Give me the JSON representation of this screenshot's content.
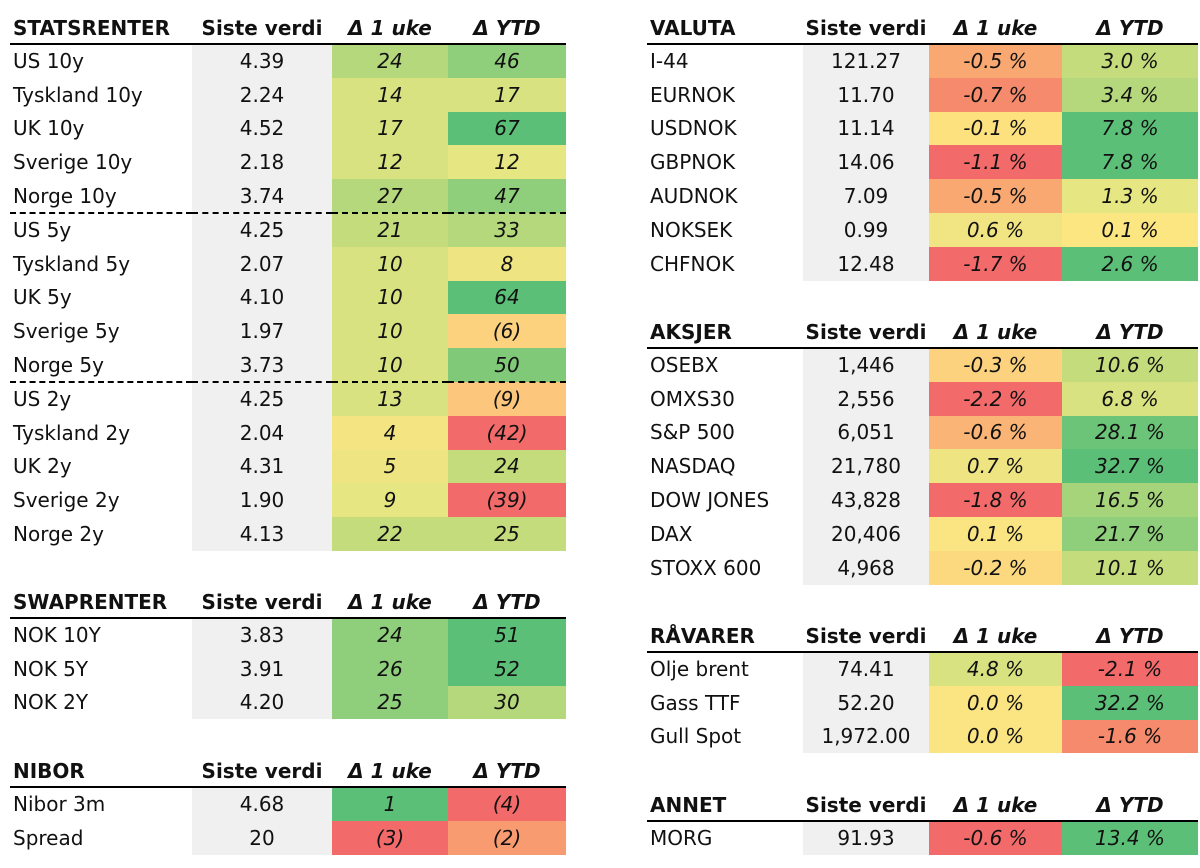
{
  "colors": {
    "green_strong": "#5cbf78",
    "green": "#8fce7a",
    "green_light": "#b4d87b",
    "yellow_green": "#d8e280",
    "yellow": "#fbe582",
    "orange_light": "#fcc77c",
    "orange": "#f99b70",
    "red": "#f36a6a",
    "value_bg": "#f0f0f0"
  },
  "tables": [
    {
      "id": "statsrenter",
      "headers": [
        "STATSRENTER",
        "Siste verdi",
        "Δ 1 uke",
        "Δ YTD"
      ],
      "rows": [
        {
          "name": "US 10y",
          "value": "4.39",
          "wk": "24",
          "ytd": "46",
          "wk_color": "#b4d87b",
          "ytd_color": "#8fce7a"
        },
        {
          "name": "Tyskland 10y",
          "value": "2.24",
          "wk": "14",
          "ytd": "17",
          "wk_color": "#d8e280",
          "ytd_color": "#d8e280"
        },
        {
          "name": "UK 10y",
          "value": "4.52",
          "wk": "17",
          "ytd": "67",
          "wk_color": "#d8e280",
          "ytd_color": "#5cbf78"
        },
        {
          "name": "Sverige 10y",
          "value": "2.18",
          "wk": "12",
          "ytd": "12",
          "wk_color": "#d8e280",
          "ytd_color": "#e6e682"
        },
        {
          "name": "Norge 10y",
          "value": "3.74",
          "wk": "27",
          "ytd": "47",
          "wk_color": "#b4d87b",
          "ytd_color": "#8fce7a",
          "sep_after": true
        },
        {
          "name": "US 5y",
          "value": "4.25",
          "wk": "21",
          "ytd": "33",
          "wk_color": "#c5dc7d",
          "ytd_color": "#b4d87b"
        },
        {
          "name": "Tyskland 5y",
          "value": "2.07",
          "wk": "10",
          "ytd": "8",
          "wk_color": "#d8e280",
          "ytd_color": "#eee582"
        },
        {
          "name": "UK 5y",
          "value": "4.10",
          "wk": "10",
          "ytd": "64",
          "wk_color": "#d8e280",
          "ytd_color": "#5cbf78"
        },
        {
          "name": "Sverige 5y",
          "value": "1.97",
          "wk": "10",
          "ytd": "(6)",
          "wk_color": "#d8e280",
          "ytd_color": "#fcd27e"
        },
        {
          "name": "Norge 5y",
          "value": "3.73",
          "wk": "10",
          "ytd": "50",
          "wk_color": "#d8e280",
          "ytd_color": "#7fc978",
          "sep_after": true
        },
        {
          "name": "US 2y",
          "value": "4.25",
          "wk": "13",
          "ytd": "(9)",
          "wk_color": "#d8e280",
          "ytd_color": "#fcc77c"
        },
        {
          "name": "Tyskland 2y",
          "value": "2.04",
          "wk": "4",
          "ytd": "(42)",
          "wk_color": "#f4e582",
          "ytd_color": "#f36a6a"
        },
        {
          "name": "UK 2y",
          "value": "4.31",
          "wk": "5",
          "ytd": "24",
          "wk_color": "#eee582",
          "ytd_color": "#c5dc7d"
        },
        {
          "name": "Sverige 2y",
          "value": "1.90",
          "wk": "9",
          "ytd": "(39)",
          "wk_color": "#e6e682",
          "ytd_color": "#f36a6a"
        },
        {
          "name": "Norge 2y",
          "value": "4.13",
          "wk": "22",
          "ytd": "25",
          "wk_color": "#c5dc7d",
          "ytd_color": "#c5dc7d"
        }
      ]
    },
    {
      "id": "swaprenter",
      "headers": [
        "SWAPRENTER",
        "Siste verdi",
        "Δ 1 uke",
        "Δ YTD"
      ],
      "rows": [
        {
          "name": "NOK 10Y",
          "value": "3.83",
          "wk": "24",
          "ytd": "51",
          "wk_color": "#8fce7a",
          "ytd_color": "#5cbf78"
        },
        {
          "name": "NOK 5Y",
          "value": "3.91",
          "wk": "26",
          "ytd": "52",
          "wk_color": "#8fce7a",
          "ytd_color": "#5cbf78"
        },
        {
          "name": "NOK 2Y",
          "value": "4.20",
          "wk": "25",
          "ytd": "30",
          "wk_color": "#8fce7a",
          "ytd_color": "#b4d87b"
        }
      ]
    },
    {
      "id": "nibor",
      "headers": [
        "NIBOR",
        "Siste verdi",
        "Δ 1 uke",
        "Δ YTD"
      ],
      "rows": [
        {
          "name": "Nibor 3m",
          "value": "4.68",
          "wk": "1",
          "ytd": "(4)",
          "wk_color": "#5cbf78",
          "ytd_color": "#f36a6a"
        },
        {
          "name": "Spread",
          "value": "20",
          "wk": "(3)",
          "ytd": "(2)",
          "wk_color": "#f36a6a",
          "ytd_color": "#f99b70"
        }
      ]
    },
    {
      "id": "valuta",
      "headers": [
        "VALUTA",
        "Siste verdi",
        "Δ 1 uke",
        "Δ YTD"
      ],
      "rows": [
        {
          "name": "I-44",
          "value": "121.27",
          "wk": "-0.5 %",
          "ytd": "3.0 %",
          "wk_color": "#f9a872",
          "ytd_color": "#c5dc7d"
        },
        {
          "name": "EURNOK",
          "value": "11.70",
          "wk": "-0.7 %",
          "ytd": "3.4 %",
          "wk_color": "#f58a6c",
          "ytd_color": "#b4d87b"
        },
        {
          "name": "USDNOK",
          "value": "11.14",
          "wk": "-0.1 %",
          "ytd": "7.8 %",
          "wk_color": "#fde17f",
          "ytd_color": "#5cbf78"
        },
        {
          "name": "GBPNOK",
          "value": "14.06",
          "wk": "-1.1 %",
          "ytd": "7.8 %",
          "wk_color": "#f36a6a",
          "ytd_color": "#5cbf78"
        },
        {
          "name": "AUDNOK",
          "value": "7.09",
          "wk": "-0.5 %",
          "ytd": "1.3 %",
          "wk_color": "#f9a872",
          "ytd_color": "#e6e682"
        },
        {
          "name": "NOKSEK",
          "value": "0.99",
          "wk": "0.6 %",
          "ytd": "0.1 %",
          "wk_color": "#f0e582",
          "ytd_color": "#fce682"
        },
        {
          "name": "CHFNOK",
          "value": "12.48",
          "wk": "-1.7 %",
          "ytd": "2.6 %",
          "wk_color": "#f36a6a",
          "ytd_color": "#5cbf78"
        }
      ]
    },
    {
      "id": "aksjer",
      "headers": [
        "AKSJER",
        "Siste verdi",
        "Δ 1 uke",
        "Δ YTD"
      ],
      "rows": [
        {
          "name": "OSEBX",
          "value": "1,446",
          "wk": "-0.3 %",
          "ytd": "10.6 %",
          "wk_color": "#fcd27e",
          "ytd_color": "#c5dc7d"
        },
        {
          "name": "OMXS30",
          "value": "2,556",
          "wk": "-2.2 %",
          "ytd": "6.8 %",
          "wk_color": "#f36a6a",
          "ytd_color": "#d8e280"
        },
        {
          "name": "S&P 500",
          "value": "6,051",
          "wk": "-0.6 %",
          "ytd": "28.1 %",
          "wk_color": "#f9b476",
          "ytd_color": "#6cc478"
        },
        {
          "name": "NASDAQ",
          "value": "21,780",
          "wk": "0.7 %",
          "ytd": "32.7 %",
          "wk_color": "#eee582",
          "ytd_color": "#5cbf78"
        },
        {
          "name": "DOW JONES",
          "value": "43,828",
          "wk": "-1.8 %",
          "ytd": "16.5 %",
          "wk_color": "#f36a6a",
          "ytd_color": "#a6d47a"
        },
        {
          "name": "DAX",
          "value": "20,406",
          "wk": "0.1 %",
          "ytd": "21.7 %",
          "wk_color": "#fbe582",
          "ytd_color": "#8fce7a"
        },
        {
          "name": "STOXX 600",
          "value": "4,968",
          "wk": "-0.2 %",
          "ytd": "10.1 %",
          "wk_color": "#fcd87f",
          "ytd_color": "#c5dc7d"
        }
      ]
    },
    {
      "id": "ravarer",
      "headers": [
        "RÅVARER",
        "Siste verdi",
        "Δ 1 uke",
        "Δ YTD"
      ],
      "rows": [
        {
          "name": "Olje brent",
          "value": "74.41",
          "wk": "4.8 %",
          "ytd": "-2.1 %",
          "wk_color": "#d8e280",
          "ytd_color": "#f36a6a"
        },
        {
          "name": "Gass TTF",
          "value": "52.20",
          "wk": "0.0 %",
          "ytd": "32.2 %",
          "wk_color": "#fbe582",
          "ytd_color": "#5cbf78"
        },
        {
          "name": "Gull Spot",
          "value": "1,972.00",
          "wk": "0.0 %",
          "ytd": "-1.6 %",
          "wk_color": "#fbe582",
          "ytd_color": "#f58a6c"
        }
      ]
    },
    {
      "id": "annet",
      "headers": [
        "ANNET",
        "Siste verdi",
        "Δ 1 uke",
        "Δ YTD"
      ],
      "rows": [
        {
          "name": "MORG",
          "value": "91.93",
          "wk": "-0.6 %",
          "ytd": "13.4 %",
          "wk_color": "#f36a6a",
          "ytd_color": "#5cbf78"
        }
      ]
    }
  ]
}
